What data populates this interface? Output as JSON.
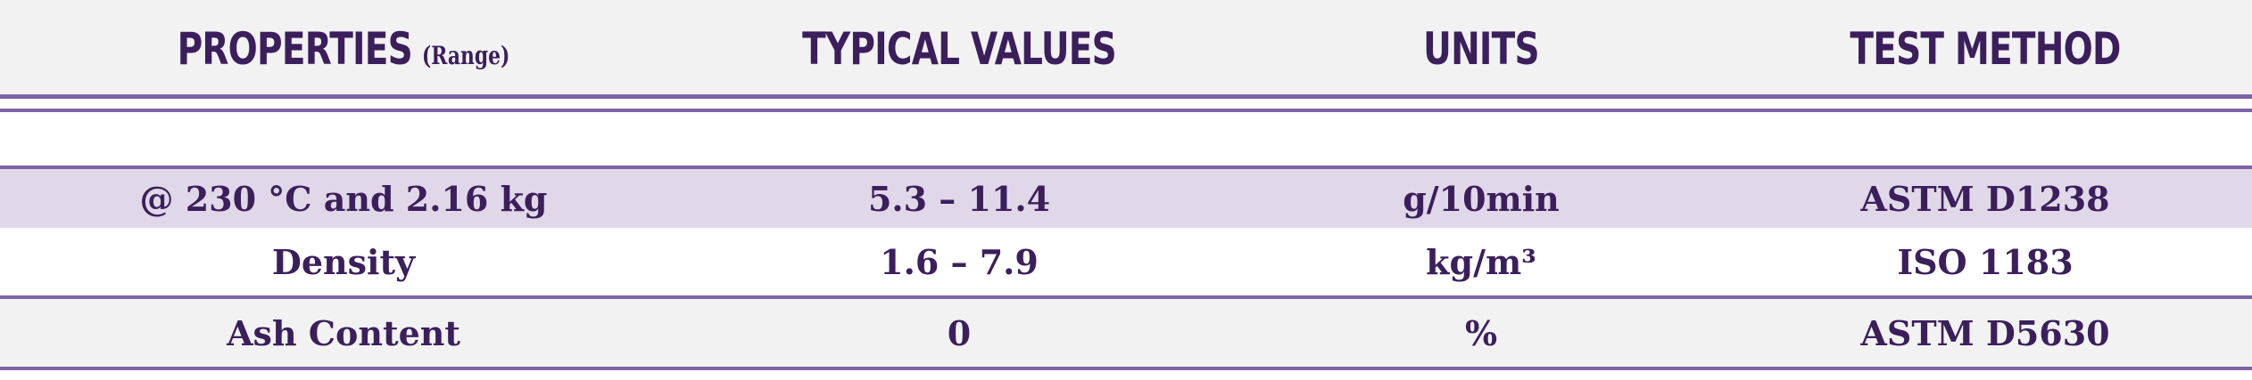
{
  "table": {
    "headers": {
      "properties": "PROPERTIES",
      "properties_sub": "(Range)",
      "typical_values": "TYPICAL VALUES",
      "units": "UNITS",
      "test_method": "TEST METHOD"
    },
    "rows": [
      {
        "property": "@ 230 °C and 2.16 kg",
        "value": "5.3 – 11.4",
        "unit": "g/10min",
        "method": "ASTM D1238"
      },
      {
        "property": "Density",
        "value": "1.6 – 7.9",
        "unit": "kg/m³",
        "method": "ISO 1183"
      },
      {
        "property": "Ash Content",
        "value": "0",
        "unit": "%",
        "method": "ASTM D5630"
      }
    ],
    "colors": {
      "text": "#3b1f5c",
      "rule": "#7d64a8",
      "header_bg": "#f2f2f2",
      "shaded_row_bg": "#e0d8e8"
    }
  }
}
